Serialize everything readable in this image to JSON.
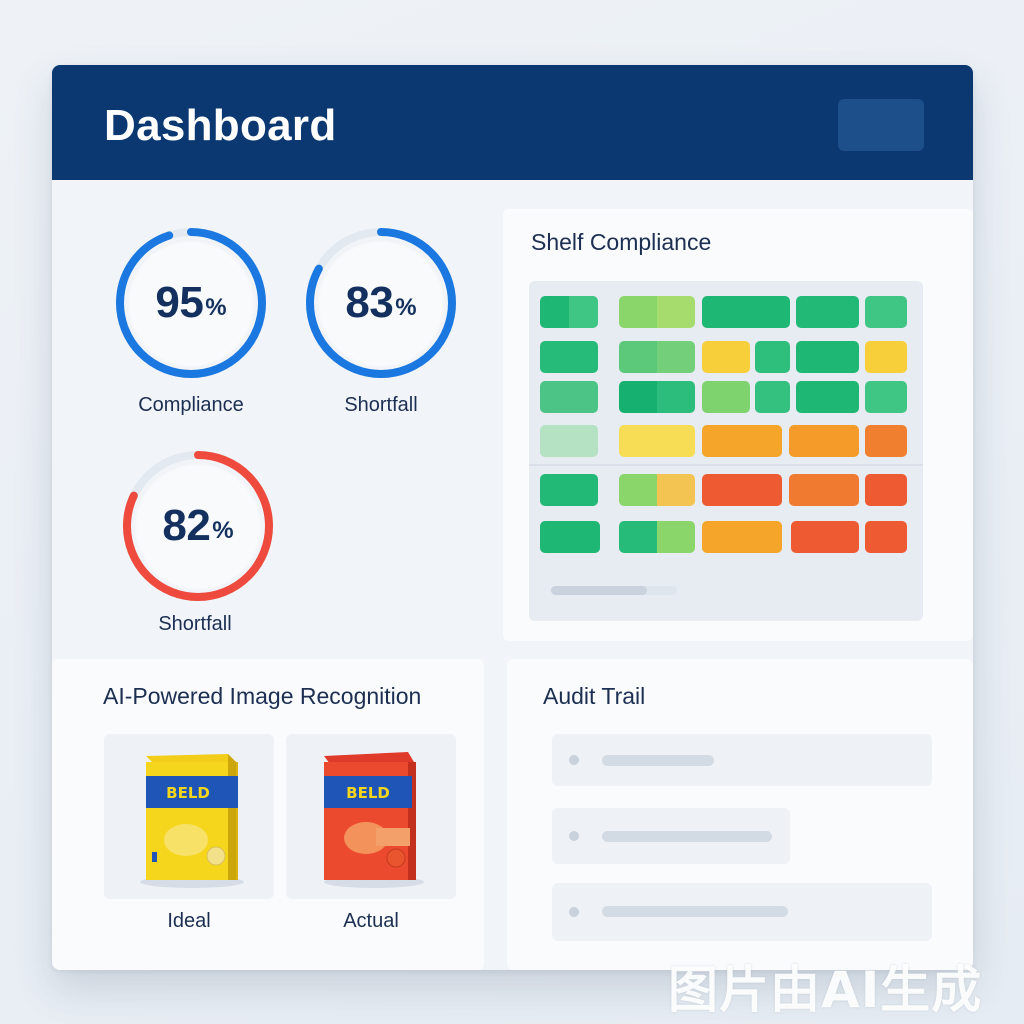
{
  "header": {
    "title": "Dashboard"
  },
  "gauges": [
    {
      "value": "95",
      "unit": "%",
      "label": "Compliance",
      "fraction": 0.95,
      "color": "#1a78e0"
    },
    {
      "value": "83",
      "unit": "%",
      "label": "Shortfall",
      "fraction": 0.83,
      "color": "#1a78e0"
    },
    {
      "value": "82",
      "unit": "%",
      "label": "Shortfall",
      "fraction": 0.82,
      "color": "#ee4a3d"
    }
  ],
  "shelf": {
    "title": "Shelf Compliance"
  },
  "recognition": {
    "title": "AI-Powered Image Recognition",
    "ideal_label": "Ideal",
    "actual_label": "Actual",
    "box_text": "BELD"
  },
  "audit": {
    "title": "Audit Trail"
  },
  "colors": {
    "header": "#0c3872",
    "accent_blue": "#1a78e0",
    "accent_red": "#ee4a3d",
    "green": "#1fb774",
    "yellow": "#f6cf3a",
    "orange": "#f59f2a",
    "red_orange": "#ee5a32"
  },
  "watermark": "图片由AI生成"
}
